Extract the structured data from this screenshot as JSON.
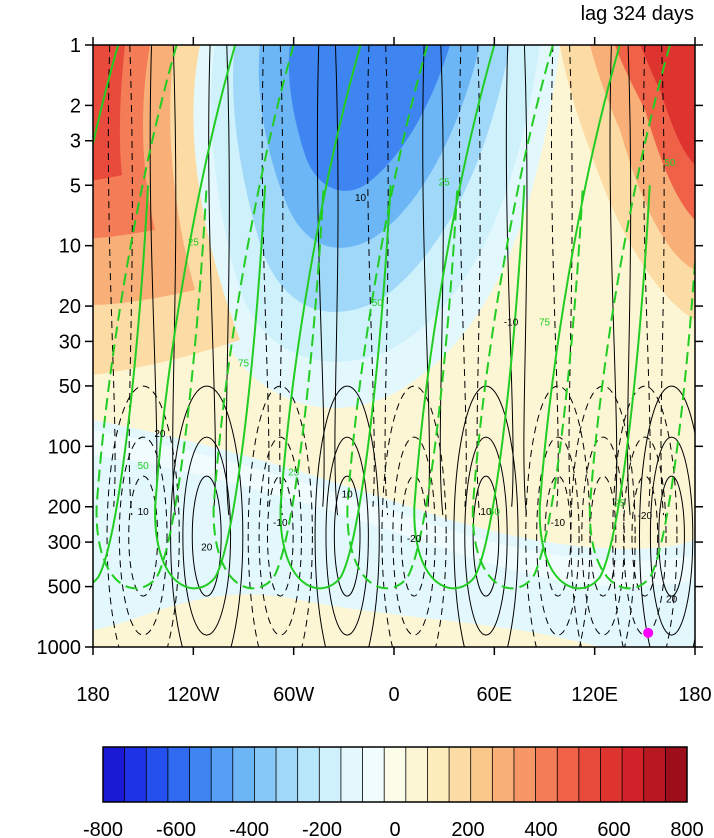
{
  "chart_data": {
    "type": "contour",
    "title": "lag 324 days",
    "x_axis": {
      "range": [
        -180,
        180
      ],
      "ticks": [
        -180,
        -120,
        -60,
        0,
        60,
        120,
        180
      ],
      "tick_labels": [
        "180",
        "120W",
        "60W",
        "0",
        "60E",
        "120E",
        "180"
      ]
    },
    "y_axis": {
      "scale": "log",
      "inverted": true,
      "range": [
        1,
        1000
      ],
      "ticks": [
        1,
        2,
        3,
        5,
        10,
        20,
        30,
        50,
        100,
        200,
        300,
        500,
        1000
      ],
      "tick_labels": [
        "1",
        "2",
        "3",
        "5",
        "10",
        "20",
        "30",
        "50",
        "100",
        "200",
        "300",
        "500",
        "1000"
      ]
    },
    "shading": {
      "levels": [
        -800,
        -750,
        -700,
        -650,
        -600,
        -550,
        -500,
        -450,
        -400,
        -350,
        -300,
        -250,
        -200,
        -150,
        -100,
        -50,
        0,
        50,
        100,
        150,
        200,
        250,
        300,
        350,
        400,
        450,
        500,
        550,
        600,
        650,
        700,
        750,
        800
      ],
      "colorbar_labels": [
        "-800",
        "-600",
        "-400",
        "-200",
        "0",
        "200",
        "400",
        "600",
        "800"
      ],
      "colors": [
        "#1a1ad4",
        "#1f33e6",
        "#2450ee",
        "#2f6af0",
        "#3f85f2",
        "#55a0f4",
        "#6cb6f6",
        "#86c8f8",
        "#a0d8fa",
        "#b8e6fb",
        "#cef1fc",
        "#e2f8fd",
        "#f0fcfd",
        "#fcfde8",
        "#fdf6d4",
        "#fdecbc",
        "#fcdca4",
        "#fbc88c",
        "#f9b078",
        "#f79666",
        "#f47c56",
        "#f06248",
        "#e84a3c",
        "#de3430",
        "#d02228",
        "#b81820",
        "#9c0f1a"
      ],
      "field": [
        {
          "x": -165,
          "p": 5,
          "value": 550
        },
        {
          "x": -160,
          "p": 30,
          "value": 250
        },
        {
          "x": -20,
          "p": 2,
          "value": -500
        },
        {
          "x": -10,
          "p": 8,
          "value": -350
        },
        {
          "x": 160,
          "p": 3,
          "value": 550
        },
        {
          "x": 0,
          "p": 100,
          "value": 70
        },
        {
          "x": -120,
          "p": 300,
          "value": -60
        },
        {
          "x": 150,
          "p": 400,
          "value": -50
        },
        {
          "x": 60,
          "p": 900,
          "value": 50
        }
      ]
    },
    "black_contour_labels": [
      "10",
      "-10",
      "20",
      "-20"
    ],
    "green_contour_labels": [
      "25",
      "50",
      "75"
    ],
    "marker": {
      "x": 152,
      "p": 850,
      "color": "#ff00ff"
    }
  }
}
